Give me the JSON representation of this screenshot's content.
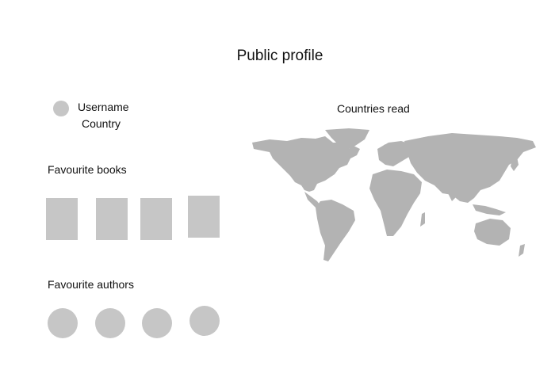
{
  "page": {
    "title": "Public profile"
  },
  "profile": {
    "avatar_icon": "user-avatar-placeholder",
    "username": "Username",
    "country": "Country"
  },
  "favourite_books": {
    "title": "Favourite books",
    "items": [
      "book-cover-placeholder",
      "book-cover-placeholder",
      "book-cover-placeholder",
      "book-cover-placeholder"
    ]
  },
  "favourite_authors": {
    "title": "Favourite authors",
    "items": [
      "author-avatar-placeholder",
      "author-avatar-placeholder",
      "author-avatar-placeholder",
      "author-avatar-placeholder"
    ]
  },
  "countries_read": {
    "title": "Countries read",
    "map_icon": "world-map",
    "map_color": "#b3b3b3"
  },
  "colors": {
    "placeholder": "#c6c6c6",
    "text": "#111111",
    "background": "#ffffff"
  }
}
